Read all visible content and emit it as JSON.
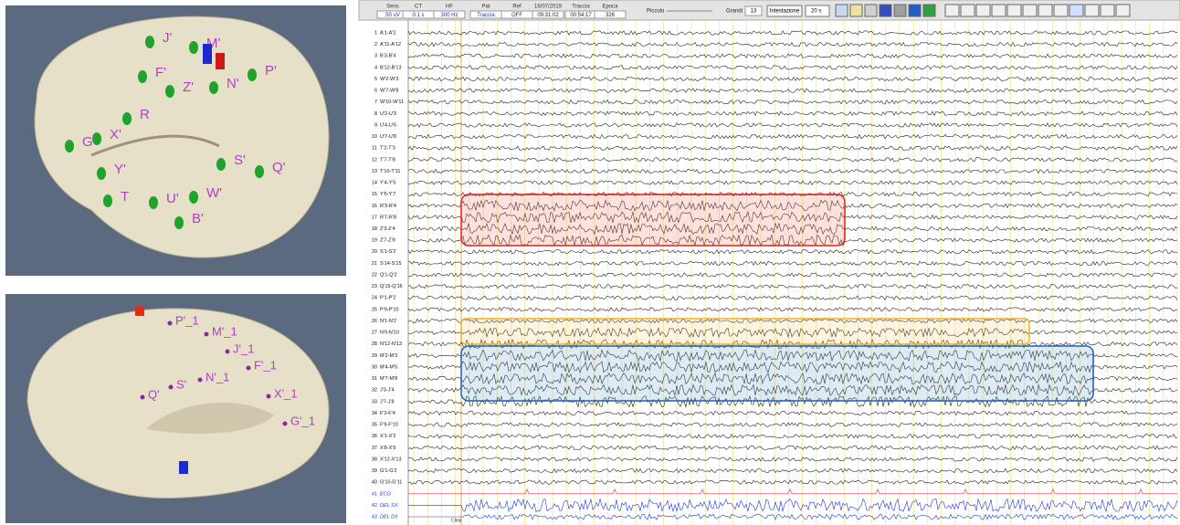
{
  "brain_top": {
    "labels": [
      "J'",
      "M'",
      "F'",
      "Z'",
      "N'",
      "P'",
      "R",
      "X'",
      "G'",
      "S'",
      "Q'",
      "Y'",
      "T",
      "U'",
      "W'",
      "B'"
    ]
  },
  "brain_bottom": {
    "labels": [
      "P'_1",
      "M'_1",
      "J'_1",
      "F'_1",
      "N'_1",
      "S'",
      "Q'",
      "X'_1",
      "G'_1"
    ]
  },
  "toolbar": {
    "headers": [
      "Sens",
      "CT",
      "HF",
      "Pat",
      "Ref",
      "16/07/2019",
      "Traccia",
      "Epoca"
    ],
    "values": [
      "50 uV",
      "0.1 s",
      "300 Hz",
      "Traccia",
      "OFF",
      "09:31:02",
      "00:54:17",
      "326"
    ],
    "small": "Piccolo",
    "large": "Grandi",
    "font_size": "13",
    "header_button": "Intestazione",
    "window": "20 s"
  },
  "channels": [
    {
      "number": 1,
      "label": "A'1-A'2"
    },
    {
      "number": 2,
      "label": "A'11-A'12"
    },
    {
      "number": 3,
      "label": "B'3-B'4"
    },
    {
      "number": 4,
      "label": "B'12-B'13"
    },
    {
      "number": 5,
      "label": "W'2-W'3"
    },
    {
      "number": 6,
      "label": "W'7-W'8"
    },
    {
      "number": 7,
      "label": "W'10-W'11"
    },
    {
      "number": 8,
      "label": "U'2-U'3"
    },
    {
      "number": 9,
      "label": "U'4-U'5"
    },
    {
      "number": 10,
      "label": "U'7-U'8"
    },
    {
      "number": 11,
      "label": "T'2-T'3"
    },
    {
      "number": 12,
      "label": "T'7-T'8"
    },
    {
      "number": 13,
      "label": "T'10-T'11"
    },
    {
      "number": 14,
      "label": "Y'4-Y'5"
    },
    {
      "number": 15,
      "label": "Y'6-Y'7"
    },
    {
      "number": 16,
      "label": "R'3-R'4"
    },
    {
      "number": 17,
      "label": "R'7-R'8"
    },
    {
      "number": 18,
      "label": "Z'3-Z'4"
    },
    {
      "number": 19,
      "label": "Z'7-Z'8"
    },
    {
      "number": 20,
      "label": "S'1-S'2"
    },
    {
      "number": 21,
      "label": "S'14-S'15"
    },
    {
      "number": 22,
      "label": "Q'1-Q'2"
    },
    {
      "number": 23,
      "label": "Q'15-Q'16"
    },
    {
      "number": 24,
      "label": "P'1-P'2"
    },
    {
      "number": 25,
      "label": "P'9-P'10"
    },
    {
      "number": 26,
      "label": "N'1-N'2"
    },
    {
      "number": 27,
      "label": "N'9-N'10"
    },
    {
      "number": 28,
      "label": "N'12-N'13"
    },
    {
      "number": 29,
      "label": "M'2-M'3"
    },
    {
      "number": 30,
      "label": "M'4-M'5"
    },
    {
      "number": 31,
      "label": "M'7-M'8"
    },
    {
      "number": 32,
      "label": "J'3-J'4"
    },
    {
      "number": 33,
      "label": "J'7-J'8"
    },
    {
      "number": 34,
      "label": "F'3-F'4"
    },
    {
      "number": 35,
      "label": "F'9-F'10"
    },
    {
      "number": 36,
      "label": "X'1-X'2"
    },
    {
      "number": 37,
      "label": "X'8-X'9"
    },
    {
      "number": 38,
      "label": "X'12-X'13"
    },
    {
      "number": 39,
      "label": "G'1-G'2"
    },
    {
      "number": 40,
      "label": "G'10-G'11"
    },
    {
      "number": 41,
      "label": "ECG"
    },
    {
      "number": 42,
      "label": "DEL SX"
    },
    {
      "number": 43,
      "label": "DEL DX"
    }
  ],
  "marker": "Clear"
}
